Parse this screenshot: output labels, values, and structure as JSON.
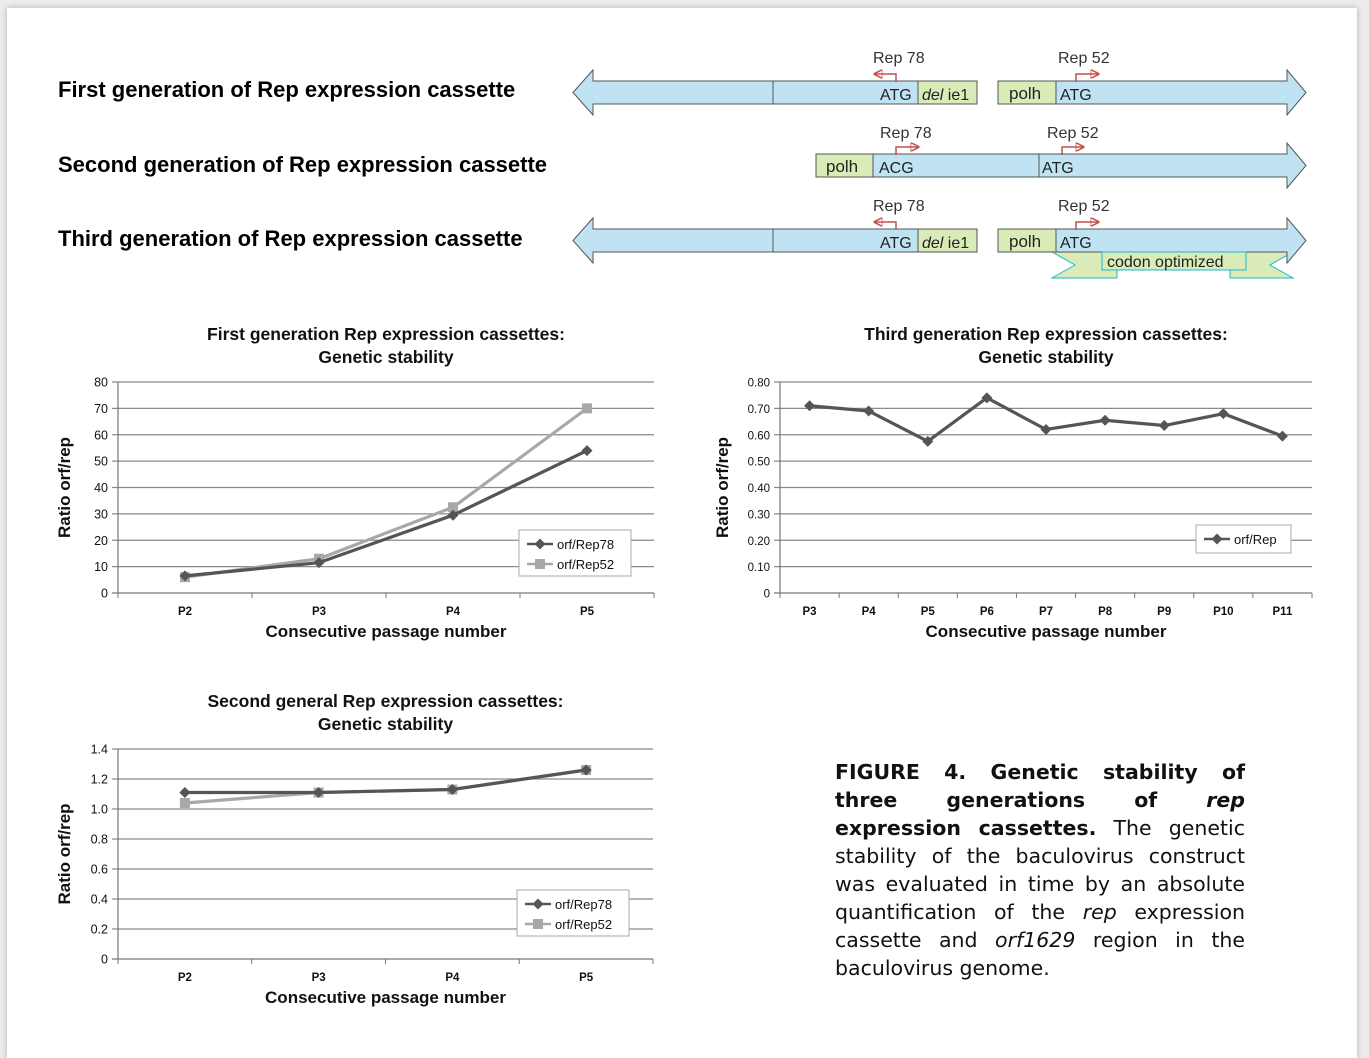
{
  "cassettes": {
    "rows": [
      {
        "label": "First generation of Rep expression cassette"
      },
      {
        "label": "Second generation of Rep expression cassette"
      },
      {
        "label": "Third generation of Rep expression cassette"
      }
    ],
    "rep78": "Rep 78",
    "rep52": "Rep 52",
    "atg": "ATG",
    "acg": "ACG",
    "polh": "polh",
    "del_italic": "del",
    "ie1": " ie1",
    "codon_optimized": "codon optimized",
    "colors": {
      "arrow_fill": "#bfe3f2",
      "box_fill": "#d9ecb8",
      "promoter_arrow": "#c0504d",
      "codon_outline": "#1fb6d6"
    }
  },
  "chart_data": [
    {
      "type": "line",
      "title": "First generation Rep expression cassettes:",
      "subtitle": "Genetic stability",
      "xlabel": "Consecutive passage number",
      "ylabel": "Ratio orf/rep",
      "categories": [
        "P2",
        "P3",
        "P4",
        "P5"
      ],
      "ylim": [
        0,
        80
      ],
      "yticks": [
        "0",
        "10",
        "20",
        "30",
        "40",
        "50",
        "60",
        "70",
        "80"
      ],
      "grid": true,
      "legend": "bottom-right",
      "series": [
        {
          "name": "orf/Rep78",
          "values": [
            6.5,
            11.5,
            29.5,
            54
          ],
          "color": "#555555",
          "marker": "diamond"
        },
        {
          "name": "orf/Rep52",
          "values": [
            6,
            13,
            32.5,
            70
          ],
          "color": "#a8a8a8",
          "marker": "square"
        }
      ]
    },
    {
      "type": "line",
      "title": "Third generation Rep expression cassettes:",
      "subtitle": "Genetic stability",
      "xlabel": "Consecutive passage number",
      "ylabel": "Ratio orf/rep",
      "categories": [
        "P3",
        "P4",
        "P5",
        "P6",
        "P7",
        "P8",
        "P9",
        "P10",
        "P11"
      ],
      "ylim": [
        0,
        0.8
      ],
      "yticks": [
        "0",
        "0.10",
        "0.20",
        "0.30",
        "0.40",
        "0.50",
        "0.60",
        "0.70",
        "0.80"
      ],
      "grid": true,
      "legend": "bottom-right",
      "series": [
        {
          "name": "orf/Rep",
          "values": [
            0.71,
            0.69,
            0.575,
            0.74,
            0.62,
            0.655,
            0.635,
            0.68,
            0.595
          ],
          "color": "#555555",
          "marker": "diamond"
        }
      ]
    },
    {
      "type": "line",
      "title": "Second general Rep expression cassettes:",
      "subtitle": "Genetic stability",
      "xlabel": "Consecutive passage number",
      "ylabel": "Ratio orf/rep",
      "categories": [
        "P2",
        "P3",
        "P4",
        "P5"
      ],
      "ylim": [
        0,
        1.4
      ],
      "yticks": [
        "0",
        "0.2",
        "0.4",
        "0.6",
        "0.8",
        "1.0",
        "1.2",
        "1.4"
      ],
      "grid": true,
      "legend": "bottom-right",
      "series": [
        {
          "name": "orf/Rep78",
          "values": [
            1.11,
            1.11,
            1.13,
            1.26
          ],
          "color": "#555555",
          "marker": "diamond"
        },
        {
          "name": "orf/Rep52",
          "values": [
            1.04,
            1.11,
            1.13,
            1.26
          ],
          "color": "#a8a8a8",
          "marker": "square"
        }
      ]
    }
  ],
  "caption": {
    "fig": "FIGURE 4. Genetic stability of three generations of ",
    "rep_italic": "rep",
    "fig_end": " expression cassettes.",
    "t1": " The genetic stability of the baculovirus construct was evaluated in time by an absolute quantification of the ",
    "t2_italic": "rep",
    "t3": " expression cassette and ",
    "t4_italic": "orf1629",
    "t5": " region in the baculovirus genome."
  }
}
